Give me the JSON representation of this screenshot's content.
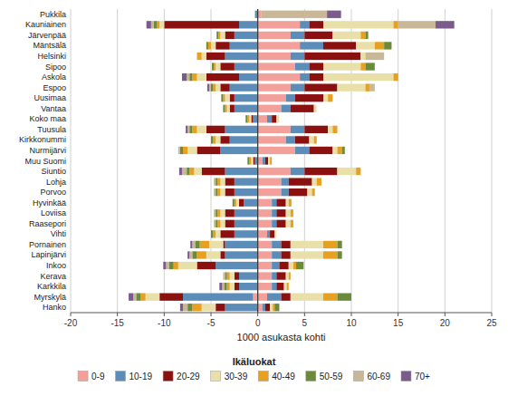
{
  "chart_data": {
    "type": "bar",
    "orientation": "horizontal",
    "stacked": true,
    "grid": true,
    "legend": "bottom",
    "legend_title": "Ikäluokat",
    "xlabel": "1000 asukasta kohti",
    "xlim": [
      -20,
      25
    ],
    "xticks": [
      -20,
      -15,
      -10,
      -5,
      0,
      5,
      10,
      15,
      20,
      25
    ],
    "categories": [
      "Pukkila",
      "Kauniainen",
      "Järvenpää",
      "Mäntsälä",
      "Helsinki",
      "Sipoo",
      "Askola",
      "Espoo",
      "Uusimaa",
      "Vantaa",
      "Koko maa",
      "Tuusula",
      "Kirkkonummi",
      "Nurmijärvi",
      "Muu Suomi",
      "Siuntio",
      "Lohja",
      "Porvoo",
      "Hyvinkää",
      "Loviisa",
      "Raasepori",
      "Vihti",
      "Pornainen",
      "Lapinjärvi",
      "Inkoo",
      "Kerava",
      "Karkkila",
      "Myrskylä",
      "Hanko"
    ],
    "series": [
      {
        "name": "0-9",
        "color": "#F4A09A",
        "values": [
          0.4,
          4.5,
          3.5,
          4.5,
          3.5,
          4.0,
          4.5,
          3.5,
          3.0,
          2.5,
          1.0,
          3.5,
          3.0,
          4.0,
          0.5,
          3.5,
          2.5,
          2.5,
          1.5,
          1.5,
          1.5,
          1.0,
          1.5,
          1.5,
          1.5,
          1.5,
          1.5,
          1.0,
          0.5
        ]
      },
      {
        "name": "10-19",
        "color": "#5B8DB8",
        "values": [
          0.0,
          1.0,
          1.5,
          2.5,
          1.5,
          1.5,
          1.0,
          1.5,
          1.0,
          1.0,
          0.5,
          1.5,
          1.0,
          1.5,
          0.3,
          1.5,
          0.8,
          0.8,
          0.5,
          0.5,
          0.5,
          0.3,
          1.0,
          1.0,
          0.8,
          0.5,
          0.5,
          1.5,
          0.3
        ]
      },
      {
        "name": "20-29",
        "color": "#8B1010",
        "values": [
          0.0,
          1.5,
          3.0,
          3.5,
          6.0,
          1.5,
          1.5,
          3.5,
          3.0,
          2.5,
          0.5,
          2.5,
          1.5,
          2.5,
          0.3,
          3.5,
          2.5,
          2.0,
          1.0,
          1.0,
          1.0,
          0.5,
          1.0,
          1.0,
          1.0,
          1.0,
          0.8,
          1.0,
          0.5
        ]
      },
      {
        "name": "30-39",
        "color": "#E8E0A8",
        "values": [
          0.0,
          7.5,
          3.0,
          2.0,
          0.5,
          4.0,
          7.5,
          3.0,
          0.5,
          0.3,
          0.3,
          0.5,
          0.5,
          0.5,
          0.2,
          2.0,
          0.5,
          0.5,
          0.3,
          0.5,
          0.5,
          0.2,
          3.5,
          3.5,
          0.5,
          0.3,
          0.3,
          3.5,
          0.3
        ]
      },
      {
        "name": "40-49",
        "color": "#E8A020",
        "values": [
          0.0,
          0.5,
          0.5,
          1.0,
          0.0,
          0.5,
          0.5,
          0.5,
          0.5,
          0.0,
          0.0,
          0.5,
          0.3,
          0.5,
          0.2,
          0.5,
          0.5,
          0.3,
          0.3,
          0.3,
          0.3,
          0.0,
          1.5,
          1.5,
          0.3,
          0.2,
          0.2,
          1.5,
          0.2
        ]
      },
      {
        "name": "50-59",
        "color": "#6B8B3A",
        "values": [
          0.0,
          0.0,
          0.3,
          0.8,
          0.0,
          1.0,
          0.0,
          0.0,
          0.0,
          0.0,
          0.0,
          0.0,
          0.0,
          0.3,
          0.0,
          0.0,
          0.0,
          0.0,
          0.0,
          0.0,
          0.0,
          0.0,
          0.5,
          0.5,
          0.8,
          0.0,
          0.0,
          1.5,
          0.5
        ]
      },
      {
        "name": "60-69",
        "color": "#C8B898",
        "values": [
          7.0,
          4.0,
          0.0,
          0.0,
          2.0,
          0.0,
          0.0,
          0.5,
          0.0,
          0.0,
          0.0,
          0.0,
          0.0,
          0.0,
          0.0,
          0.0,
          0.0,
          0.0,
          0.0,
          0.0,
          0.0,
          0.0,
          0.0,
          0.0,
          0.0,
          0.0,
          0.0,
          0.0,
          0.0
        ]
      },
      {
        "name": "70+",
        "color": "#7B5B8B",
        "values": [
          1.5,
          2.0,
          0.0,
          0.0,
          0.0,
          0.0,
          0.0,
          0.0,
          0.0,
          0.0,
          0.0,
          0.0,
          0.0,
          0.0,
          0.0,
          0.0,
          0.0,
          0.0,
          0.0,
          0.0,
          0.0,
          0.0,
          0.0,
          0.0,
          0.0,
          0.0,
          0.0,
          0.0,
          0.0
        ]
      },
      {
        "name": "0-9",
        "color": "#F4A09A",
        "values": [
          0.0,
          0.0,
          0.0,
          0.0,
          0.0,
          0.0,
          0.0,
          0.0,
          0.0,
          0.0,
          0.0,
          0.0,
          0.0,
          0.0,
          0.0,
          0.0,
          0.0,
          0.0,
          0.0,
          0.0,
          0.0,
          0.0,
          0.0,
          0.0,
          0.0,
          0.0,
          0.0,
          -0.5,
          0.0
        ]
      },
      {
        "name": "10-19",
        "color": "#5B8DB8",
        "values": [
          -0.3,
          -2.0,
          -2.5,
          -3.0,
          -3.5,
          -2.5,
          -2.0,
          -3.0,
          -2.5,
          -2.5,
          -0.5,
          -3.5,
          -3.0,
          -4.0,
          -0.3,
          -3.5,
          -2.5,
          -2.5,
          -1.5,
          -2.5,
          -2.5,
          -2.5,
          -3.5,
          -3.5,
          -4.5,
          -2.0,
          -2.0,
          -7.5,
          -3.5
        ]
      },
      {
        "name": "20-29",
        "color": "#8B1010",
        "values": [
          0.0,
          -8.0,
          -1.0,
          -1.5,
          -2.0,
          -1.5,
          -3.5,
          -1.0,
          -0.5,
          -0.5,
          -0.2,
          -2.0,
          -1.0,
          -2.5,
          -0.2,
          -2.5,
          -1.0,
          -1.0,
          -0.5,
          -1.0,
          -1.0,
          -1.5,
          -0.2,
          -0.5,
          -2.0,
          -0.5,
          -0.5,
          -2.5,
          -1.0
        ]
      },
      {
        "name": "30-39",
        "color": "#E8E0A8",
        "values": [
          0.0,
          -0.5,
          -0.5,
          -0.5,
          -0.5,
          -0.5,
          -1.0,
          -0.5,
          -0.5,
          -0.3,
          -0.2,
          -1.0,
          -0.5,
          -1.0,
          -0.2,
          -0.8,
          -0.5,
          -0.5,
          -0.3,
          -0.5,
          -0.5,
          -0.5,
          -1.5,
          -1.5,
          -2.0,
          -0.5,
          -0.5,
          -1.5,
          -1.5
        ]
      },
      {
        "name": "40-49",
        "color": "#E8A020",
        "values": [
          0.0,
          -0.3,
          -0.2,
          -0.3,
          -0.5,
          -0.2,
          -0.5,
          -0.3,
          -0.2,
          -0.2,
          -0.2,
          -0.5,
          -0.3,
          -0.5,
          -0.2,
          -0.5,
          -0.3,
          -0.3,
          -0.2,
          -0.3,
          -0.3,
          -0.3,
          -1.0,
          -1.0,
          -0.5,
          -0.3,
          -0.3,
          -0.5,
          -1.0
        ]
      },
      {
        "name": "50-59",
        "color": "#6B8B3A",
        "values": [
          0.0,
          -0.3,
          -0.2,
          -0.2,
          -0.0,
          -0.2,
          -0.3,
          -0.2,
          -0.2,
          -0.2,
          -0.2,
          -0.3,
          -0.2,
          -0.3,
          -0.2,
          -0.3,
          -0.2,
          -0.2,
          -0.2,
          -0.2,
          -0.2,
          -0.2,
          -0.5,
          -0.5,
          -0.5,
          -0.2,
          -0.3,
          -0.5,
          -0.5
        ]
      },
      {
        "name": "60-69",
        "color": "#C8B898",
        "values": [
          0.0,
          -0.3,
          -0.0,
          -0.0,
          -0.0,
          -0.0,
          -0.3,
          -0.2,
          -0.0,
          -0.0,
          -0.0,
          -0.2,
          -0.0,
          -0.2,
          -0.0,
          -0.5,
          -0.2,
          -0.2,
          -0.0,
          -0.2,
          -0.2,
          -0.0,
          -0.3,
          -0.3,
          -0.3,
          -0.2,
          -0.2,
          -0.3,
          -0.5
        ]
      },
      {
        "name": "70+",
        "color": "#7B5B8B",
        "values": [
          0.0,
          -0.5,
          -0.0,
          -0.0,
          -0.0,
          -0.0,
          -0.5,
          -0.2,
          -0.0,
          -0.0,
          -0.0,
          -0.2,
          -0.0,
          -0.0,
          -0.0,
          -0.3,
          -0.0,
          -0.0,
          -0.0,
          -0.0,
          -0.0,
          -0.0,
          -0.2,
          -0.2,
          -0.3,
          -0.0,
          -0.3,
          -0.5,
          -0.3
        ]
      }
    ]
  }
}
